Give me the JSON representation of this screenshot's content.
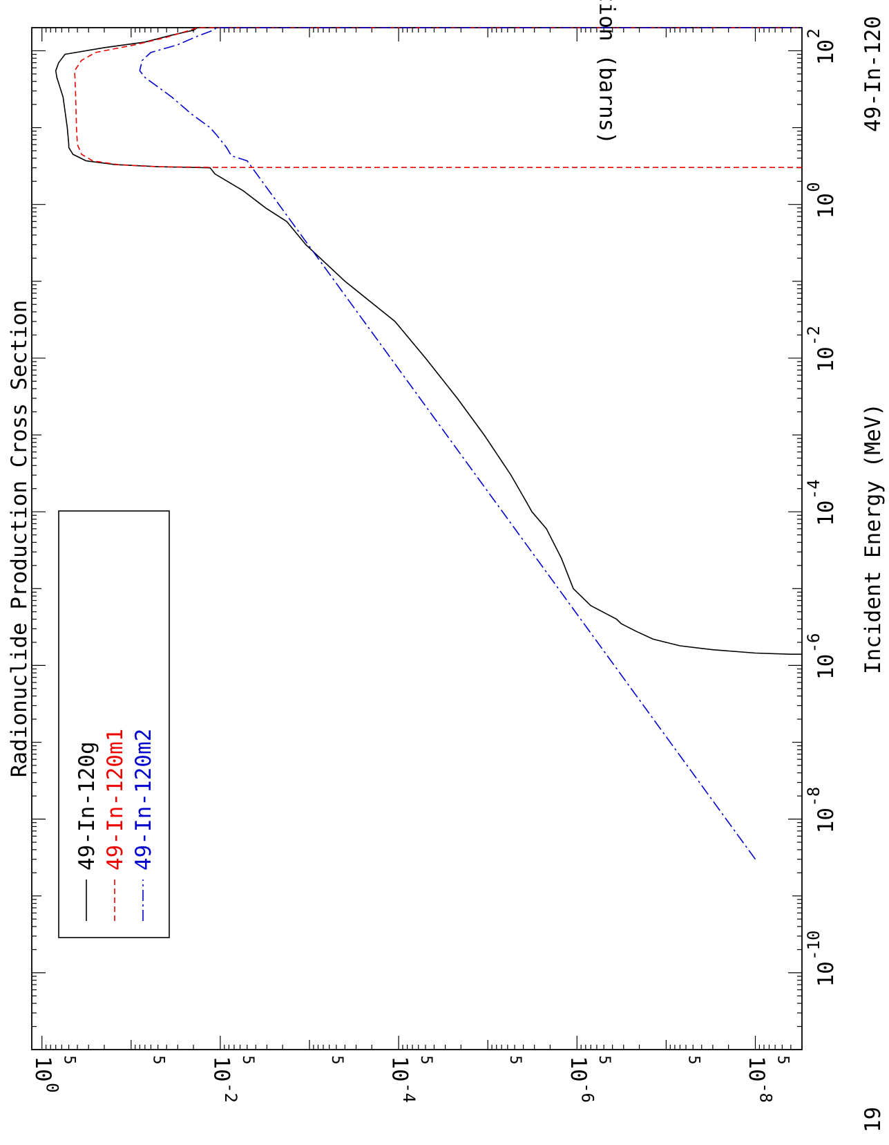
{
  "chart_data": {
    "type": "line",
    "title": "Radionuclide Production Cross Section",
    "xlabel": "Incident Energy (MeV)",
    "ylabel": "Cross Section (barns)",
    "x_scale": "log",
    "y_scale": "log",
    "xlim": [
      1e-11,
      200
    ],
    "ylim": [
      3e-09,
      1.3
    ],
    "x_ticks": [
      {
        "value": 1e-10,
        "base": "10",
        "exp": "-10"
      },
      {
        "value": 1e-08,
        "base": "10",
        "exp": "-8"
      },
      {
        "value": 1e-06,
        "base": "10",
        "exp": "-6"
      },
      {
        "value": 0.0001,
        "base": "10",
        "exp": "-4"
      },
      {
        "value": 0.01,
        "base": "10",
        "exp": "-2"
      },
      {
        "value": 1,
        "base": "10",
        "exp": "0"
      },
      {
        "value": 100,
        "base": "10",
        "exp": "2"
      }
    ],
    "y_ticks": [
      {
        "value": 1e-08,
        "base": "10",
        "exp": "-8"
      },
      {
        "value": 1e-06,
        "base": "10",
        "exp": "-6"
      },
      {
        "value": 0.0001,
        "base": "10",
        "exp": "-4"
      },
      {
        "value": 0.01,
        "base": "10",
        "exp": "-2"
      },
      {
        "value": 1,
        "base": "10",
        "exp": "0"
      }
    ],
    "y_minor_label": "5",
    "y_minor_label_values": [
      5e-09,
      5e-08,
      5e-07,
      5e-06,
      5e-05,
      0.0005,
      0.005,
      0.05,
      0.5
    ],
    "corner_left": "19",
    "corner_right": "49-In-120",
    "legend_position": "bottom-left",
    "series": [
      {
        "name": "49-In-120g",
        "color": "#000000",
        "dash": "solid",
        "points": [
          [
            1.4e-06,
            3e-09
          ],
          [
            1.4e-06,
            4e-09
          ],
          [
            1.45e-06,
            1e-08
          ],
          [
            1.6e-06,
            3e-08
          ],
          [
            1.8e-06,
            7e-08
          ],
          [
            2.2e-06,
            1.4e-07
          ],
          [
            2.8e-06,
            2.2e-07
          ],
          [
            3.5e-06,
            3.2e-07
          ],
          [
            4e-06,
            3.6e-07
          ],
          [
            6e-06,
            7e-07
          ],
          [
            1e-05,
            1.1e-06
          ],
          [
            2.5e-05,
            1.5e-06
          ],
          [
            6e-05,
            2.2e-06
          ],
          [
            0.0001,
            3.2e-06
          ],
          [
            0.00015,
            3.9e-06
          ],
          [
            0.0003,
            5.5e-06
          ],
          [
            0.001,
            1.1e-05
          ],
          [
            0.003,
            2.2e-05
          ],
          [
            0.01,
            5e-05
          ],
          [
            0.03,
            0.00011
          ],
          [
            0.1,
            0.0004
          ],
          [
            0.3,
            0.0011
          ],
          [
            0.6,
            0.0018
          ],
          [
            0.9,
            0.0031
          ],
          [
            1.5,
            0.0055
          ],
          [
            2.5,
            0.0115
          ],
          [
            3,
            0.013
          ],
          [
            3.1,
            0.05
          ],
          [
            3.3,
            0.15
          ],
          [
            3.7,
            0.32
          ],
          [
            4.5,
            0.45
          ],
          [
            5.5,
            0.5
          ],
          [
            6,
            0.5
          ],
          [
            10,
            0.52
          ],
          [
            25,
            0.58
          ],
          [
            45,
            0.68
          ],
          [
            55,
            0.7
          ],
          [
            70,
            0.65
          ],
          [
            90,
            0.55
          ],
          [
            110,
            0.2
          ],
          [
            130,
            0.07
          ],
          [
            160,
            0.035
          ],
          [
            185,
            0.02
          ],
          [
            200,
            0.018
          ],
          [
            200,
            0.018
          ]
        ]
      },
      {
        "name": "49-In-120m1",
        "color": "#ee0000",
        "dash": "dashed",
        "points": [
          [
            3.03,
            3e-09
          ],
          [
            3.03,
            0.01
          ],
          [
            3.1,
            0.05
          ],
          [
            3.3,
            0.14
          ],
          [
            3.7,
            0.27
          ],
          [
            4.5,
            0.36
          ],
          [
            6,
            0.4
          ],
          [
            10,
            0.41
          ],
          [
            30,
            0.42
          ],
          [
            55,
            0.43
          ],
          [
            75,
            0.36
          ],
          [
            95,
            0.25
          ],
          [
            120,
            0.09
          ],
          [
            150,
            0.04
          ],
          [
            185,
            0.022
          ],
          [
            200,
            0.018
          ],
          [
            200,
            3e-09
          ]
        ]
      },
      {
        "name": "49-In-120m2",
        "color": "#0000cc",
        "dash": "dashdot",
        "points": [
          [
            3e-09,
            1e-08
          ],
          [
            3.7,
            0.005
          ],
          [
            4.3,
            0.0075
          ],
          [
            5.5,
            0.0085
          ],
          [
            8,
            0.011
          ],
          [
            10,
            0.013
          ],
          [
            15,
            0.021
          ],
          [
            25,
            0.035
          ],
          [
            35,
            0.052
          ],
          [
            45,
            0.07
          ],
          [
            55,
            0.08
          ],
          [
            75,
            0.075
          ],
          [
            95,
            0.06
          ],
          [
            120,
            0.03
          ],
          [
            155,
            0.018
          ],
          [
            185,
            0.012
          ],
          [
            200,
            0.011
          ],
          [
            200,
            3e-09
          ]
        ]
      }
    ]
  }
}
